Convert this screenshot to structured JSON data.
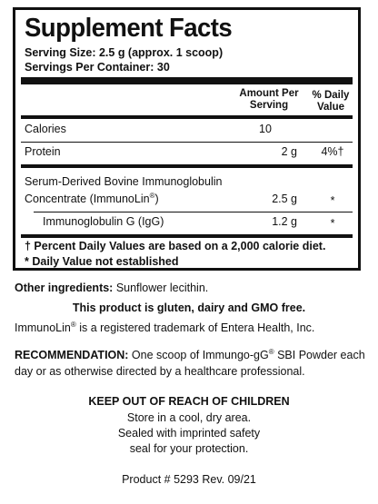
{
  "title": "Supplement Facts",
  "serving_size": "Serving Size: 2.5 g (approx. 1 scoop)",
  "servings_per_container": "Servings Per Container: 30",
  "columns": {
    "amount_line1": "Amount Per",
    "amount_line2": "Serving",
    "dv_line1": "% Daily",
    "dv_line2": "Value"
  },
  "rows": [
    {
      "name": "Calories",
      "amount": "10",
      "dv": ""
    },
    {
      "name": "Protein",
      "amount": "2 g",
      "dv": "4%†"
    },
    {
      "name_line1": "Serum-Derived Bovine Immunoglobulin",
      "name_line2": "Concentrate (ImmunoLin",
      "name_reg": "®",
      "name_line2_end": ")",
      "amount": "2.5 g",
      "dv": "*"
    },
    {
      "name": "Immunoglobulin G (IgG)",
      "amount": "1.2 g",
      "dv": "*"
    }
  ],
  "footnote_1": "† Percent Daily Values are based on a 2,000 calorie diet.",
  "footnote_2": "* Daily Value not established",
  "other_ingredients_label": "Other ingredients:",
  "other_ingredients": " Sunflower lecithin.",
  "free_from": "This product is gluten, dairy and GMO free.",
  "trademark_pre": "ImmunoLin",
  "trademark_reg": "®",
  "trademark_post": " is a registered trademark of Entera Health, Inc.",
  "recommendation_label": "RECOMMENDATION:",
  "recommendation_pre": " One scoop of Immungo-gG",
  "recommendation_reg": "®",
  "recommendation_post": " SBI Powder each",
  "recommendation_line2": "day or as otherwise directed by a healthcare professional.",
  "warning": "KEEP OUT OF REACH OF CHILDREN",
  "storage_1": "Store in a cool, dry area.",
  "storage_2": "Sealed with imprinted safety",
  "storage_3": "seal for your protection.",
  "product_number": "Product # 5293 Rev. 09/21"
}
